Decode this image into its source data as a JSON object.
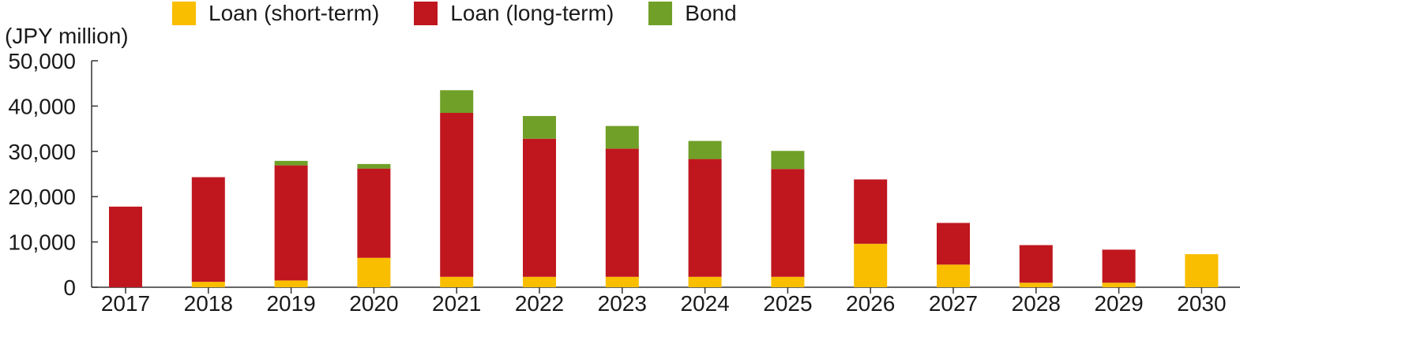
{
  "chart_data": {
    "type": "bar",
    "stacked": true,
    "unit_label": "(JPY million)",
    "categories": [
      "2017",
      "2018",
      "2019",
      "2020",
      "2021",
      "2022",
      "2023",
      "2024",
      "2025",
      "2026",
      "2027",
      "2028",
      "2029",
      "2030"
    ],
    "series": [
      {
        "name": "Loan (short-term)",
        "color": "#f9be00",
        "values": [
          0,
          1200,
          1500,
          6500,
          2300,
          2300,
          2300,
          2300,
          2300,
          9600,
          5000,
          1000,
          1000,
          7300
        ]
      },
      {
        "name": "Loan (long-term)",
        "color": "#c0171f",
        "values": [
          17800,
          23100,
          25400,
          19700,
          36200,
          30500,
          28300,
          26000,
          23800,
          14200,
          9200,
          8300,
          7300,
          0
        ]
      },
      {
        "name": "Bond",
        "color": "#70a028",
        "values": [
          0,
          0,
          1000,
          1000,
          5000,
          5000,
          5000,
          4000,
          4000,
          0,
          0,
          0,
          0,
          0
        ]
      }
    ],
    "yticks": [
      "0",
      "10,000",
      "20,000",
      "30,000",
      "40,000",
      "50,000"
    ],
    "ylim": [
      0,
      50000
    ],
    "legend_position": "top",
    "grid": false
  }
}
